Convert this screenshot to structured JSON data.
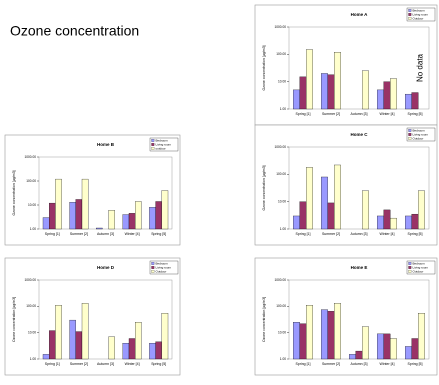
{
  "title": "Ozone concentration",
  "chart_data": [
    {
      "type": "bar",
      "title": "Home A",
      "ylabel": "Ozone concentration [µg/m3]",
      "log": true,
      "categories": [
        "Spring [1]",
        "Summer [2]",
        "Autumn [3]",
        "Winter [4]",
        "Spring [5]"
      ],
      "series": [
        {
          "name": "Bedroom",
          "color": "#9999ff",
          "values": [
            5,
            20,
            null,
            5,
            3.5
          ]
        },
        {
          "name": "Living room",
          "color": "#993366",
          "values": [
            15,
            18,
            null,
            10,
            4
          ]
        },
        {
          "name": "Outdoor",
          "color": "#ffffcc",
          "values": [
            150,
            120,
            25,
            13,
            null
          ]
        }
      ],
      "annotation": "No data",
      "ylim": [
        1,
        1000
      ],
      "yticks": [
        {
          "value": 1,
          "label": "1.00"
        },
        {
          "value": 10,
          "label": "10.00"
        },
        {
          "value": 100,
          "label": "100.00"
        },
        {
          "value": 1000,
          "label": "1000.00"
        }
      ]
    },
    {
      "type": "bar",
      "title": "Home B",
      "ylabel": "Ozone concentration [µg/m3]",
      "log": true,
      "categories": [
        "Spring [1]",
        "Summer [2]",
        "Autumn [3]",
        "Winter [4]",
        "Spring [5]"
      ],
      "series": [
        {
          "name": "Bedroom",
          "color": "#9999ff",
          "values": [
            3,
            13,
            1.1,
            4,
            8
          ]
        },
        {
          "name": "Living room",
          "color": "#993366",
          "values": [
            12,
            17,
            null,
            4.5,
            14
          ]
        },
        {
          "name": "outdoor",
          "color": "#ffffcc",
          "values": [
            120,
            120,
            6,
            14,
            40
          ]
        }
      ],
      "ylim": [
        1,
        1000
      ],
      "yticks": [
        {
          "value": 1,
          "label": "1.00"
        },
        {
          "value": 10,
          "label": "10.00"
        },
        {
          "value": 100,
          "label": "100.00"
        },
        {
          "value": 1000,
          "label": "1000.00"
        }
      ]
    },
    {
      "type": "bar",
      "title": "Home C",
      "ylabel": "Ozone concentration [µg/m3]",
      "log": true,
      "categories": [
        "Spring [1]",
        "Summer [2]",
        "Autumn [3]",
        "Winter [4]",
        "Spring [5]"
      ],
      "series": [
        {
          "name": "Bedroom",
          "color": "#9999ff",
          "values": [
            3,
            80,
            null,
            3,
            3
          ]
        },
        {
          "name": "Living room",
          "color": "#993366",
          "values": [
            10,
            9,
            null,
            5,
            3.5
          ]
        },
        {
          "name": "Outdoor",
          "color": "#ffffcc",
          "values": [
            180,
            220,
            25,
            2.5,
            25
          ]
        }
      ],
      "ylim": [
        1,
        1000
      ],
      "yticks": [
        {
          "value": 1,
          "label": "1.00"
        },
        {
          "value": 10,
          "label": "10.00"
        },
        {
          "value": 100,
          "label": "100.00"
        },
        {
          "value": 1000,
          "label": "1000.00"
        }
      ]
    },
    {
      "type": "bar",
      "title": "Home D",
      "ylabel": "Ozone concentration [µg/m3]",
      "log": true,
      "categories": [
        "Spring [1]",
        "Summer [2]",
        "Autumn [3]",
        "Winter [4]",
        "Spring [5]"
      ],
      "series": [
        {
          "name": "Bedroom",
          "color": "#9999ff",
          "values": [
            1.5,
            30,
            null,
            4,
            4
          ]
        },
        {
          "name": "Living room",
          "color": "#993366",
          "values": [
            12,
            11,
            null,
            6,
            4.5
          ]
        },
        {
          "name": "Outdoor",
          "color": "#ffffcc",
          "values": [
            110,
            130,
            7,
            25,
            55
          ]
        }
      ],
      "ylim": [
        1,
        1000
      ],
      "yticks": [
        {
          "value": 1,
          "label": "1.00"
        },
        {
          "value": 10,
          "label": "10.00"
        },
        {
          "value": 100,
          "label": "100.00"
        },
        {
          "value": 1000,
          "label": "1000.00"
        }
      ]
    },
    {
      "type": "bar",
      "title": "Home E",
      "ylabel": "Ozone concentration [µg/m3]",
      "log": true,
      "categories": [
        "Spring [1]",
        "Summer [2]",
        "Autumn [3]",
        "Winter [4]",
        "Spring [5]"
      ],
      "series": [
        {
          "name": "Bedroom",
          "color": "#9999ff",
          "values": [
            25,
            75,
            1.5,
            9,
            3
          ]
        },
        {
          "name": "Living room",
          "color": "#993366",
          "values": [
            22,
            65,
            2,
            9,
            6
          ]
        },
        {
          "name": "Outdoor",
          "color": "#ffffcc",
          "values": [
            110,
            130,
            17,
            6,
            55
          ]
        }
      ],
      "ylim": [
        1,
        1000
      ],
      "yticks": [
        {
          "value": 1,
          "label": "1.00"
        },
        {
          "value": 10,
          "label": "10.00"
        },
        {
          "value": 100,
          "label": "100.00"
        },
        {
          "value": 1000,
          "label": "1000.00"
        }
      ]
    }
  ]
}
